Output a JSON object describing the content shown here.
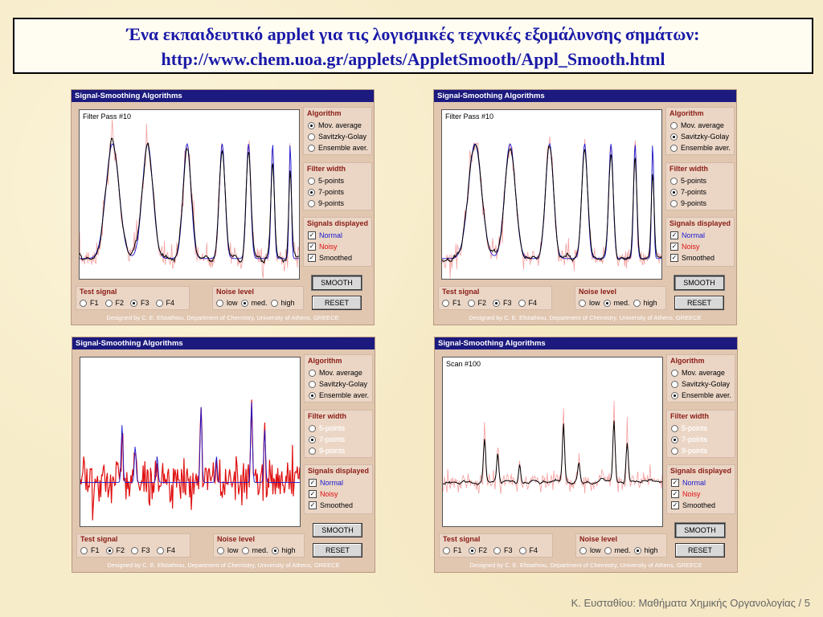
{
  "title": {
    "line1": "Ένα εκπαιδευτικό applet για τις λογισμικές τεχνικές εξομάλυνσης σημάτων:",
    "line2": "http://www.chem.uoa.gr/applets/AppletSmooth/Appl_Smooth.html"
  },
  "footer": "Κ. Ευσταθίου: Μαθήματα Χημικής Οργανολογίας / 5",
  "common": {
    "window_title": "Signal-Smoothing Algorithms",
    "algorithm_header": "Algorithm",
    "algorithms": [
      "Mov. average",
      "Savitzky-Golay",
      "Ensemble aver."
    ],
    "filter_header": "Filter width",
    "filters": [
      "5-points",
      "7-points",
      "9-points"
    ],
    "signals_header": "Signals displayed",
    "signals": [
      "Normal",
      "Noisy",
      "Smoothed"
    ],
    "smooth_button": "SMOOTH",
    "reset_button": "RESET",
    "test_signal_header": "Test signal",
    "test_signals": [
      "F1",
      "F2",
      "F3",
      "F4"
    ],
    "noise_header": "Noise level",
    "noise_levels": [
      "low",
      "med.",
      "high"
    ],
    "designed_by": "Designed by C. E. Efstathiou, Department of Chemistry, University of Athens, GREECE",
    "check_mark": "✓"
  },
  "panels": [
    {
      "plot_label": "Filter Pass #10",
      "algorithm": 0,
      "filter": 1,
      "filter_enabled": true,
      "test_signal": 2,
      "noise": 1,
      "smooth_pressed": true
    },
    {
      "plot_label": "Filter Pass #10",
      "algorithm": 1,
      "filter": 1,
      "filter_enabled": true,
      "test_signal": 2,
      "noise": 1,
      "smooth_pressed": true
    },
    {
      "plot_label": "",
      "algorithm": 2,
      "filter": 1,
      "filter_enabled": false,
      "test_signal": 1,
      "noise": 2,
      "smooth_pressed": false
    },
    {
      "plot_label": "Scan #100",
      "algorithm": 2,
      "filter": 1,
      "filter_enabled": false,
      "test_signal": 1,
      "noise": 2,
      "smooth_pressed": true
    }
  ],
  "colors": {
    "normal": "#1818d0",
    "noisy": "#e01010",
    "noisy_light": "#f4a0a0",
    "smoothed": "#000000",
    "title_bar": "#1c1a7e"
  }
}
